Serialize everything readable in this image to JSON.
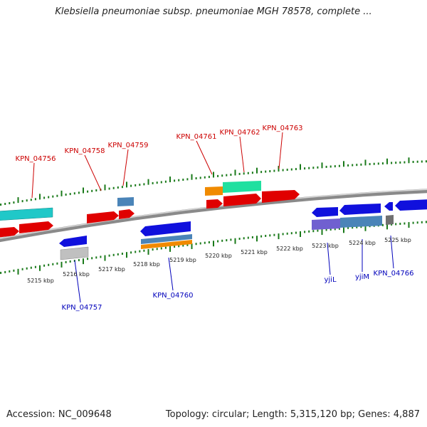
{
  "title": "Klebsiella pneumoniae subsp. pneumoniae MGH 78578, complete ...",
  "footer": {
    "accession": "Accession: NC_009648",
    "stats": "Topology: circular; Length: 5,315,120 bp; Genes: 4,887"
  },
  "colors": {
    "forward_gene": "#e00000",
    "reverse_gene": "#1010dd",
    "cyan_gene": "#20c8c8",
    "teal_gene": "#20e0a0",
    "steel_gene": "#4a84b8",
    "orange_gene": "#f08a00",
    "violet_gene": "#7060d0",
    "gray_gene": "#c0c0c0",
    "backbone": "#888888",
    "tick": "#1a7a1a"
  },
  "scale_labels": [
    "5215 kbp",
    "5216 kbp",
    "5217 kbp",
    "5218 kbp",
    "5219 kbp",
    "5220 kbp",
    "5221 kbp",
    "5222 kbp",
    "5223 kbp",
    "5224 kbp",
    "5225 kbp"
  ],
  "forward_labels": [
    "KPN_04756",
    "KPN_04758",
    "KPN_04759",
    "KPN_04761",
    "KPN_04762",
    "KPN_04763"
  ],
  "reverse_labels": [
    "KPN_04757",
    "KPN_04760",
    "yjiL",
    "yjiM",
    "KPN_04766"
  ]
}
